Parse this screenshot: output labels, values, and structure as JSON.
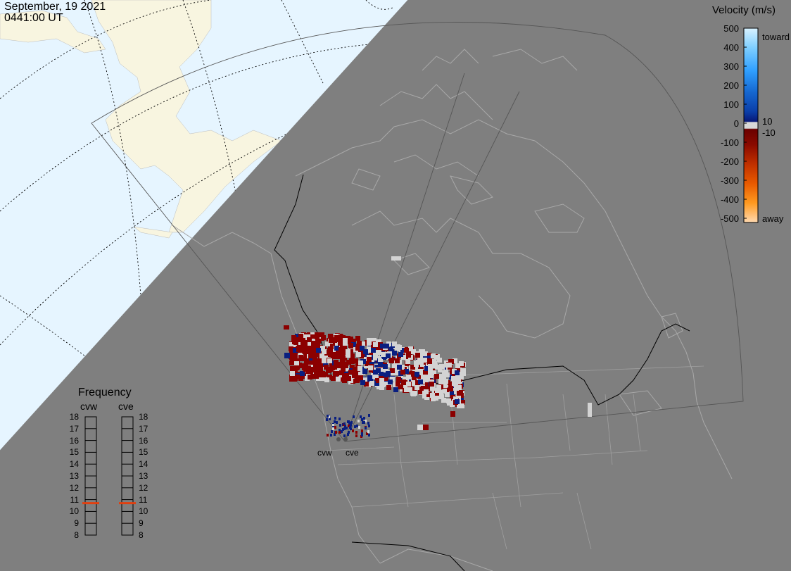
{
  "header": {
    "date": "September, 19 2021",
    "time": "0441:00 UT"
  },
  "velocity_scale": {
    "title": "Velocity (m/s)",
    "ticks": [
      "500",
      "400",
      "300",
      "200",
      "100",
      "0",
      "-100",
      "-200",
      "-300",
      "-400",
      "-500"
    ],
    "label_toward": "toward",
    "label_away": "away",
    "label_plus10": "10",
    "label_minus10": "-10",
    "colors": [
      "#cfeeff",
      "#8fd8ff",
      "#3fb0ff",
      "#1a7fe0",
      "#0a4fb0",
      "#0a1f80",
      "#e0e0e0",
      "#7a0000",
      "#a01000",
      "#d04000",
      "#ff8000",
      "#ffc890"
    ]
  },
  "frequency_panel": {
    "title": "Frequency",
    "radar_west": "cvw",
    "radar_east": "cve",
    "scale": [
      "18",
      "17",
      "16",
      "15",
      "14",
      "13",
      "12",
      "11",
      "10",
      "9",
      "8"
    ],
    "cvw_mhz": 10.7,
    "cve_mhz": 10.7,
    "marker_color": "#e04010"
  },
  "radar_sites": {
    "west_label": "cvw",
    "east_label": "cve"
  },
  "colors": {
    "night": "#7f7f7f",
    "ocean_day": "#e6f5ff",
    "land_day": "#f8f5e0",
    "scatter_red": "#8b0000",
    "scatter_blue": "#0a1f80",
    "scatter_grey": "#d3d3d3"
  }
}
